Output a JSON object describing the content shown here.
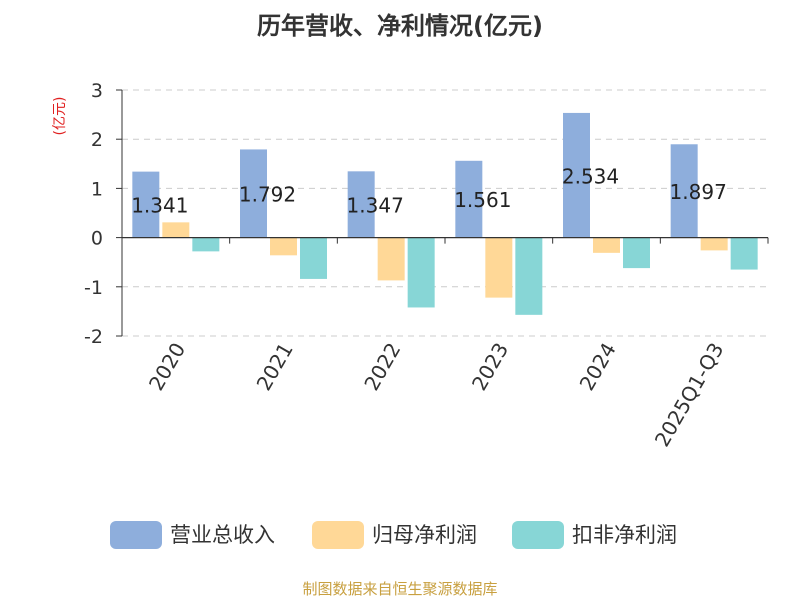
{
  "chart_data": {
    "type": "bar",
    "title": "历年营收、净利情况(亿元)",
    "ylabel": "(亿元)",
    "xlabel": "",
    "ylim": [
      -2,
      3
    ],
    "yticks": [
      3,
      2,
      1,
      0,
      -1,
      -2
    ],
    "grid": true,
    "legend_position": "bottom",
    "categories": [
      "2020",
      "2021",
      "2022",
      "2023",
      "2024",
      "2025Q1-Q3"
    ],
    "series": [
      {
        "name": "营业总收入",
        "color": "#8eaedc",
        "values": [
          1.341,
          1.792,
          1.347,
          1.561,
          2.534,
          1.897
        ],
        "labels": [
          "1.341",
          "1.792",
          "1.347",
          "1.561",
          "2.534",
          "1.897"
        ]
      },
      {
        "name": "归母净利润",
        "color": "#ffd897",
        "values": [
          0.31,
          -0.36,
          -0.87,
          -1.22,
          -0.31,
          -0.26
        ]
      },
      {
        "name": "扣非净利润",
        "color": "#87d6d6",
        "values": [
          -0.28,
          -0.84,
          -1.42,
          -1.57,
          -0.62,
          -0.65
        ]
      }
    ]
  },
  "footer": {
    "source": "制图数据来自恒生聚源数据库"
  }
}
